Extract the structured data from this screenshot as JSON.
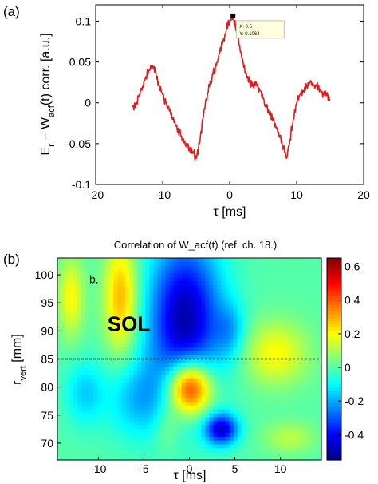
{
  "chart_data": [
    {
      "panel_label": "(a)",
      "type": "line",
      "title": "",
      "xlabel": "τ [ms]",
      "ylabel_parts": {
        "E": "E",
        "r": "r",
        "mid": " − W",
        "acf": "acf",
        "end": "(t) corr. [a.u.]"
      },
      "xlim": [
        -20,
        20
      ],
      "ylim": [
        -0.1,
        0.12
      ],
      "xticks": [
        -20,
        -10,
        0,
        10,
        20
      ],
      "yticks": [
        -0.1,
        -0.05,
        0,
        0.05,
        0.1
      ],
      "ytick_labels": [
        "-0.1",
        "-0.05",
        "0",
        "0.05",
        "0.1"
      ],
      "color": "#e41a1c",
      "annotation": {
        "x_text": "X: 0.5",
        "y_text": "Y: 0.1064",
        "x": 0.5,
        "y": 0.1064
      },
      "series": [
        {
          "x": [
            -14.5,
            -14,
            -13.5,
            -13,
            -12.5,
            -12,
            -11.5,
            -11,
            -10.5,
            -10,
            -9.5,
            -9,
            -8.5,
            -8,
            -7.5,
            -7,
            -6.5,
            -6,
            -5.5,
            -5,
            -4.5,
            -4,
            -3.5,
            -3,
            -2.5,
            -2,
            -1.5,
            -1,
            -0.5,
            0,
            0.5,
            1,
            1.5,
            2,
            2.5,
            3,
            3.5,
            4,
            4.5,
            5,
            5.5,
            6,
            6.5,
            7,
            7.5,
            8,
            8.5,
            9,
            9.5,
            10,
            10.5,
            11,
            11.5,
            12,
            12.5,
            13,
            13.5,
            14,
            14.5,
            15
          ],
          "y": [
            -0.005,
            0.0,
            0.01,
            0.02,
            0.032,
            0.04,
            0.045,
            0.035,
            0.02,
            0.01,
            0.0,
            -0.01,
            -0.02,
            -0.028,
            -0.035,
            -0.045,
            -0.05,
            -0.055,
            -0.06,
            -0.068,
            -0.05,
            -0.02,
            0.005,
            0.02,
            0.035,
            0.045,
            0.06,
            0.075,
            0.09,
            0.1,
            0.106,
            0.09,
            0.07,
            0.05,
            0.035,
            0.025,
            0.02,
            0.022,
            0.015,
            0.005,
            -0.005,
            -0.015,
            -0.02,
            -0.03,
            -0.04,
            -0.055,
            -0.068,
            -0.045,
            -0.02,
            0.0,
            0.01,
            0.015,
            0.02,
            0.025,
            0.022,
            0.02,
            0.015,
            0.012,
            0.01,
            0.003
          ]
        }
      ]
    },
    {
      "panel_label": "(b)",
      "type": "heatmap",
      "title": "Correlation of W_acf(t) (ref. ch. 18.)",
      "xlabel": "τ [ms]",
      "ylabel_parts": {
        "r": "r",
        "vert": "vert",
        "end": " [mm]"
      },
      "xlim": [
        -14.5,
        14.5
      ],
      "ylim": [
        67,
        103
      ],
      "xticks": [
        -10,
        -5,
        0,
        5,
        10
      ],
      "yticks": [
        70,
        75,
        80,
        85,
        90,
        95,
        100
      ],
      "colorbar": {
        "min": -0.55,
        "max": 0.65,
        "ticks": [
          -0.4,
          -0.2,
          0,
          0.2,
          0.4,
          0.6
        ],
        "tick_labels": [
          "-0.4",
          "-0.2",
          "0",
          "0.2",
          "0.4",
          "0.6"
        ]
      },
      "separatrix_r": 85,
      "annotations": [
        {
          "text": "b.",
          "x": -11,
          "y": 98.5
        },
        {
          "text": "SOL",
          "x": -9,
          "y": 90
        }
      ],
      "blobs": [
        {
          "x": 0,
          "y": 80,
          "sx": 1.7,
          "sy": 3.5,
          "amp": 0.62
        },
        {
          "x": -0.5,
          "y": 92,
          "sx": 2.8,
          "sy": 10,
          "amp": -0.5
        },
        {
          "x": 3.5,
          "y": 72.5,
          "sx": 1.3,
          "sy": 2.0,
          "amp": -0.45
        },
        {
          "x": -7.5,
          "y": 96,
          "sx": 1.3,
          "sy": 7,
          "amp": 0.3
        },
        {
          "x": -13,
          "y": 96,
          "sx": 1.0,
          "sy": 5,
          "amp": 0.2
        },
        {
          "x": 9.5,
          "y": 86,
          "sx": 2.5,
          "sy": 4,
          "amp": 0.2
        },
        {
          "x": -5.5,
          "y": 78,
          "sx": 2.5,
          "sy": 5,
          "amp": -0.18
        },
        {
          "x": 4.5,
          "y": 90,
          "sx": 1.2,
          "sy": 3.5,
          "amp": -0.15
        },
        {
          "x": -11.5,
          "y": 79,
          "sx": 1.5,
          "sy": 4,
          "amp": -0.15
        },
        {
          "x": 11,
          "y": 71,
          "sx": 2.0,
          "sy": 2.0,
          "amp": 0.12
        },
        {
          "x": -2.5,
          "y": 73,
          "sx": 1.0,
          "sy": 3,
          "amp": 0.1
        }
      ]
    }
  ]
}
